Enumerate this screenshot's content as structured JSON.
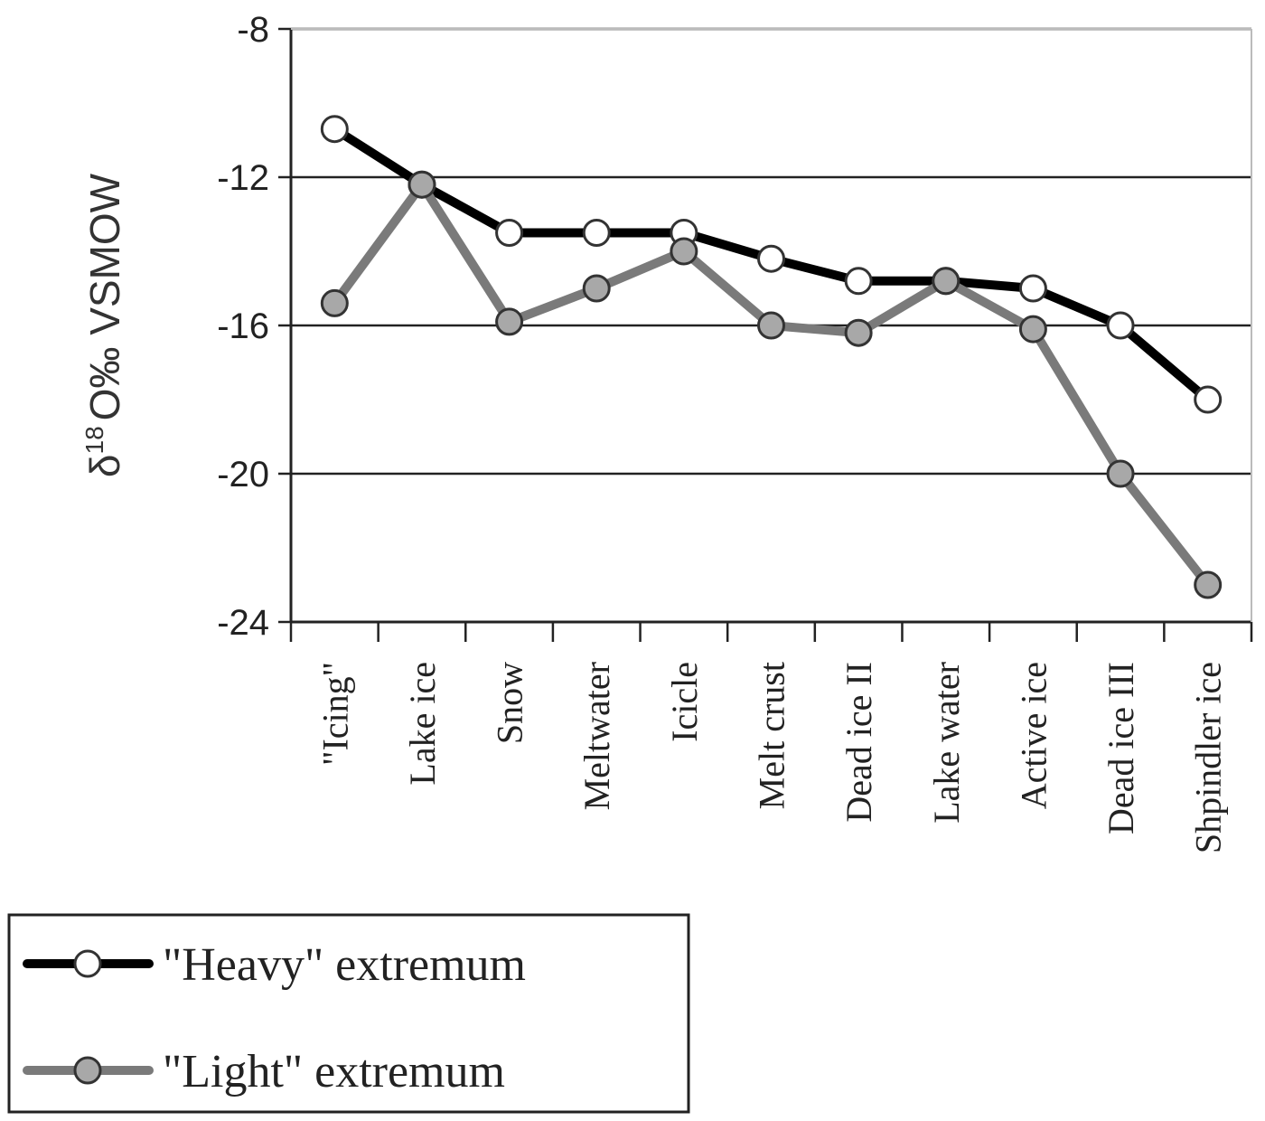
{
  "chart_data": {
    "type": "line",
    "title": "",
    "xlabel": "",
    "ylabel": {
      "prefix": "δ",
      "superscript": "18",
      "suffix": "O‰ VSMOW"
    },
    "ylim": [
      -24,
      -8
    ],
    "yticks": [
      -8,
      -12,
      -16,
      -20,
      -24
    ],
    "ytick_labels": [
      "-8",
      "-12",
      "-16",
      "-20",
      "-24"
    ],
    "grid": true,
    "legend_position": "bottom-left",
    "categories": [
      "\"Icing\"",
      "Lake ice",
      "Snow",
      "Meltwater",
      "Icicle",
      "Melt crust",
      "Dead ice II",
      "Lake water",
      "Active ice",
      "Dead ice III",
      "Shpindler ice"
    ],
    "series": [
      {
        "name": "\"Heavy\" extremum",
        "line_color": "#000000",
        "marker_fill": "#ffffff",
        "values": [
          -10.7,
          -12.2,
          -13.5,
          -13.5,
          -13.5,
          -14.2,
          -14.8,
          -14.8,
          -15.0,
          -16.0,
          -18.0
        ]
      },
      {
        "name": "\"Light\" extremum",
        "line_color": "#7a7a7a",
        "marker_fill": "#a8a8a8",
        "values": [
          -15.4,
          -12.2,
          -15.9,
          -15.0,
          -14.0,
          -16.0,
          -16.2,
          -14.8,
          -16.1,
          -20.0,
          -23.0
        ]
      }
    ]
  }
}
